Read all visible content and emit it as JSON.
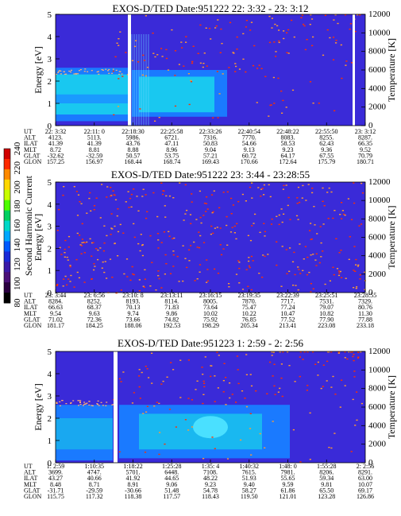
{
  "colorbar": {
    "label": "Second Harmonic Current",
    "ticks": [
      "240",
      "220",
      "200",
      "180",
      "160",
      "140",
      "120",
      "100",
      "80"
    ],
    "colors": [
      "#d10000",
      "#ff2a00",
      "#ff8a00",
      "#ffd700",
      "#c8ff00",
      "#4cff00",
      "#00d060",
      "#00d8c8",
      "#00a8ff",
      "#005aff",
      "#1a2ad8",
      "#3a1aa8",
      "#4a1078",
      "#2a0040",
      "#000000"
    ]
  },
  "chart_data": [
    {
      "type": "heatmap",
      "title": "EXOS-D/TED   Date:951222  22: 3:32 - 23: 3:12",
      "ylabel": "Energy [eV]",
      "y2label": "Temperature [K]",
      "ylim": [
        0,
        5
      ],
      "y2lim": [
        0,
        12000
      ],
      "yticks": [
        "0",
        "1",
        "2",
        "3",
        "4",
        "5"
      ],
      "y2ticks": [
        "0",
        "2000",
        "4000",
        "6000",
        "8000",
        "10000",
        "12000"
      ],
      "orbit_table": {
        "row_labels": [
          "UT",
          "ALT",
          "ILAT",
          "MLT",
          "GLAT",
          "GLON"
        ],
        "columns": [
          [
            "22: 3:32",
            "4123.",
            "41.39",
            "8.72",
            "-32.62",
            "157.25"
          ],
          [
            "22:11: 0",
            "5113.",
            "41.39",
            "8.81",
            "-32.59",
            "156.97"
          ],
          [
            "22:18:30",
            "5986.",
            "43.76",
            "8.88",
            "50.57",
            "168.44"
          ],
          [
            "22:25:58",
            "6721.",
            "47.11",
            "8.96",
            "53.75",
            "168.74"
          ],
          [
            "22:33:26",
            "7316.",
            "50.83",
            "9.04",
            "57.21",
            "169.43"
          ],
          [
            "22:40:54",
            "7770.",
            "54.66",
            "9.13",
            "60.72",
            "170.66"
          ],
          [
            "22:48:22",
            "8083.",
            "58.53",
            "9.23",
            "64.17",
            "172.64"
          ],
          [
            "22:55:50",
            "8255.",
            "62.43",
            "9.36",
            "67.55",
            "175.79"
          ],
          [
            "23: 3:12",
            "8287.",
            "66.35",
            "9.52",
            "70.79",
            "180.71"
          ]
        ]
      }
    },
    {
      "type": "heatmap",
      "title": "EXOS-D/TED   Date:951222  23: 3:44 - 23:28:55",
      "ylabel": "Energy [eV]",
      "y2label": "Temperature [K]",
      "ylim": [
        0,
        5
      ],
      "y2lim": [
        0,
        12000
      ],
      "yticks": [
        "0",
        "1",
        "2",
        "3",
        "4",
        "5"
      ],
      "y2ticks": [
        "0",
        "2000",
        "4000",
        "6000",
        "8000",
        "10000",
        "12000"
      ],
      "orbit_table": {
        "row_labels": [
          "UT",
          "ALT",
          "ILAT",
          "MLT",
          "GLAT",
          "GLON"
        ],
        "columns": [
          [
            "23: 3:44",
            "8284.",
            "66.63",
            "9.54",
            "71.02",
            "181.17"
          ],
          [
            "23: 6:56",
            "8252.",
            "68.37",
            "9.63",
            "72.36",
            "184.25"
          ],
          [
            "23:10: 8",
            "8193.",
            "70.13",
            "9.74",
            "73.66",
            "188.06"
          ],
          [
            "23:13:11",
            "8114.",
            "71.83",
            "9.86",
            "74.82",
            "192.53"
          ],
          [
            "23:16:15",
            "8005.",
            "73.64",
            "10.02",
            "75.92",
            "198.29"
          ],
          [
            "23:19:35",
            "7870.",
            "75.47",
            "10.22",
            "76.85",
            "205.34"
          ],
          [
            "23:22:39",
            "7717.",
            "77.24",
            "10.47",
            "77.52",
            "213.41"
          ],
          [
            "23:25:51",
            "7531.",
            "79.07",
            "10.82",
            "77.90",
            "223.08"
          ],
          [
            "23:28:55",
            "7329.",
            "80.76",
            "11.30",
            "77.88",
            "233.18"
          ]
        ]
      }
    },
    {
      "type": "heatmap",
      "title": "EXOS-D/TED   Date:951223  1: 2:59 - 2: 2:56",
      "ylabel": "Energy [eV]",
      "y2label": "Temperature [K]",
      "ylim": [
        0,
        5
      ],
      "y2lim": [
        0,
        12000
      ],
      "yticks": [
        "0",
        "1",
        "2",
        "3",
        "4",
        "5"
      ],
      "y2ticks": [
        "0",
        "2000",
        "4000",
        "6000",
        "8000",
        "10000",
        "12000"
      ],
      "orbit_table": {
        "row_labels": [
          "UT",
          "ALT",
          "ILAT",
          "MLT",
          "GLAT",
          "GLON"
        ],
        "columns": [
          [
            "1: 2:59",
            "3699.",
            "43.27",
            "8.48",
            "-31.71",
            "115.75"
          ],
          [
            "1:10:35",
            "4747.",
            "40.66",
            "8.71",
            "-29.59",
            "117.32"
          ],
          [
            "1:18:22",
            "5701.",
            "41.92",
            "8.91",
            "-30.66",
            "118.38"
          ],
          [
            "1:25:28",
            "6448.",
            "44.65",
            "9.06",
            "51.48",
            "117.57"
          ],
          [
            "1:35: 4",
            "7108.",
            "48.22",
            "9.23",
            "54.78",
            "118.43"
          ],
          [
            "1:40:32",
            "7615.",
            "51.93",
            "9.40",
            "58.27",
            "119.50"
          ],
          [
            "1:48: 0",
            "7981.",
            "55.65",
            "9.59",
            "61.86",
            "121.01"
          ],
          [
            "1:55:28",
            "8206.",
            "59.34",
            "9.81",
            "65.50",
            "123.28"
          ],
          [
            "2: 2:56",
            "8291.",
            "63.00",
            "10.07",
            "69.17",
            "126.86"
          ]
        ]
      }
    }
  ]
}
